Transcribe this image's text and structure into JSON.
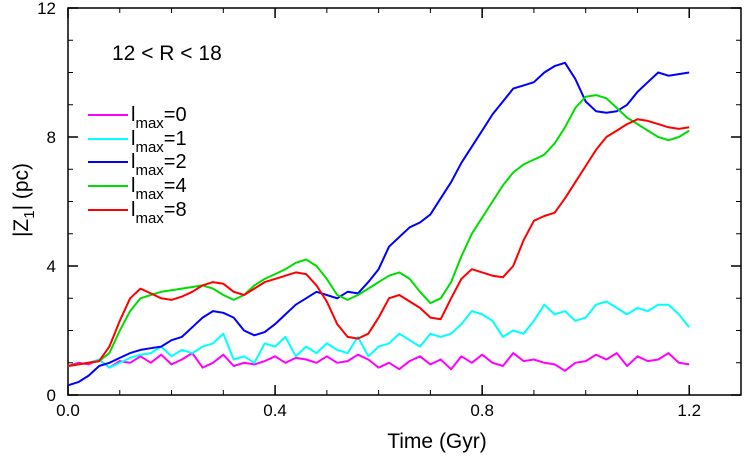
{
  "chart_data": {
    "type": "line",
    "xlabel": "Time (Gyr)",
    "ylabel_parts": {
      "pre": "|Z",
      "sub": "1",
      "post": "| (pc)"
    },
    "annotation": "12 < R < 18",
    "xlim": [
      0.0,
      1.3
    ],
    "ylim": [
      0,
      12
    ],
    "xticks": [
      0.0,
      0.4,
      0.8,
      1.2
    ],
    "xtick_labels": [
      "0.0",
      "0.4",
      "0.8",
      "1.2"
    ],
    "yticks": [
      0,
      4,
      8,
      12
    ],
    "ytick_labels": [
      "0",
      "4",
      "8",
      "12"
    ],
    "legend_placement": "upper-left",
    "legend_symbol": "l",
    "legend_sub": "max",
    "series": [
      {
        "name": "=0",
        "color": "#ff00ff",
        "x": [
          0.0,
          0.02,
          0.04,
          0.06,
          0.08,
          0.1,
          0.12,
          0.14,
          0.16,
          0.18,
          0.2,
          0.22,
          0.24,
          0.26,
          0.28,
          0.3,
          0.32,
          0.34,
          0.36,
          0.38,
          0.4,
          0.42,
          0.44,
          0.46,
          0.48,
          0.5,
          0.52,
          0.54,
          0.56,
          0.58,
          0.6,
          0.62,
          0.64,
          0.66,
          0.68,
          0.7,
          0.72,
          0.74,
          0.76,
          0.78,
          0.8,
          0.82,
          0.84,
          0.86,
          0.88,
          0.9,
          0.92,
          0.94,
          0.96,
          0.98,
          1.0,
          1.02,
          1.04,
          1.06,
          1.08,
          1.1,
          1.12,
          1.14,
          1.16,
          1.18,
          1.2
        ],
        "y": [
          0.9,
          1.0,
          0.95,
          1.1,
          0.85,
          1.05,
          1.0,
          1.2,
          1.0,
          1.25,
          0.95,
          1.1,
          1.3,
          0.85,
          1.0,
          1.25,
          0.9,
          1.0,
          0.95,
          1.05,
          1.2,
          1.0,
          1.15,
          1.1,
          1.0,
          1.2,
          1.0,
          1.05,
          1.25,
          1.1,
          0.85,
          1.0,
          0.8,
          1.05,
          1.2,
          0.95,
          1.1,
          0.8,
          1.2,
          1.0,
          1.25,
          1.0,
          0.9,
          1.3,
          1.05,
          1.1,
          1.0,
          0.95,
          0.75,
          1.0,
          1.05,
          1.25,
          1.1,
          1.3,
          0.9,
          1.2,
          1.05,
          1.1,
          1.3,
          1.0,
          0.95
        ]
      },
      {
        "name": "=1",
        "color": "#00ffff",
        "x": [
          0.0,
          0.02,
          0.04,
          0.06,
          0.08,
          0.1,
          0.12,
          0.14,
          0.16,
          0.18,
          0.2,
          0.22,
          0.24,
          0.26,
          0.28,
          0.3,
          0.32,
          0.34,
          0.36,
          0.38,
          0.4,
          0.42,
          0.44,
          0.46,
          0.48,
          0.5,
          0.52,
          0.54,
          0.56,
          0.58,
          0.6,
          0.62,
          0.64,
          0.66,
          0.68,
          0.7,
          0.72,
          0.74,
          0.76,
          0.78,
          0.8,
          0.82,
          0.84,
          0.86,
          0.88,
          0.9,
          0.92,
          0.94,
          0.96,
          0.98,
          1.0,
          1.02,
          1.04,
          1.06,
          1.08,
          1.1,
          1.12,
          1.14,
          1.16,
          1.18,
          1.2
        ],
        "y": [
          0.9,
          0.95,
          1.0,
          1.1,
          0.85,
          1.0,
          1.15,
          1.25,
          1.3,
          1.5,
          1.2,
          1.4,
          1.3,
          1.5,
          1.6,
          1.9,
          1.1,
          1.2,
          1.0,
          1.6,
          1.5,
          1.8,
          1.2,
          1.5,
          1.3,
          1.6,
          1.4,
          1.3,
          1.8,
          1.2,
          1.5,
          1.6,
          1.9,
          1.7,
          1.5,
          1.9,
          1.8,
          1.9,
          2.2,
          2.6,
          2.5,
          2.3,
          1.8,
          2.0,
          1.9,
          2.3,
          2.8,
          2.5,
          2.6,
          2.3,
          2.4,
          2.8,
          2.9,
          2.7,
          2.5,
          2.7,
          2.6,
          2.8,
          2.8,
          2.5,
          2.1
        ]
      },
      {
        "name": "=2",
        "color": "#0000ff",
        "x": [
          0.0,
          0.02,
          0.04,
          0.06,
          0.08,
          0.1,
          0.12,
          0.14,
          0.16,
          0.18,
          0.2,
          0.22,
          0.24,
          0.26,
          0.28,
          0.3,
          0.32,
          0.34,
          0.36,
          0.38,
          0.4,
          0.42,
          0.44,
          0.46,
          0.48,
          0.5,
          0.52,
          0.54,
          0.56,
          0.58,
          0.6,
          0.62,
          0.64,
          0.66,
          0.68,
          0.7,
          0.72,
          0.74,
          0.76,
          0.78,
          0.8,
          0.82,
          0.84,
          0.86,
          0.88,
          0.9,
          0.92,
          0.94,
          0.96,
          0.98,
          1.0,
          1.02,
          1.04,
          1.06,
          1.08,
          1.1,
          1.12,
          1.14,
          1.16,
          1.18,
          1.2
        ],
        "y": [
          0.3,
          0.4,
          0.6,
          0.9,
          1.0,
          1.15,
          1.3,
          1.4,
          1.45,
          1.5,
          1.7,
          1.8,
          2.1,
          2.4,
          2.6,
          2.55,
          2.4,
          2.0,
          1.85,
          1.95,
          2.2,
          2.5,
          2.8,
          3.0,
          3.2,
          3.1,
          3.0,
          3.2,
          3.15,
          3.5,
          3.9,
          4.6,
          4.9,
          5.2,
          5.35,
          5.6,
          6.1,
          6.6,
          7.2,
          7.7,
          8.2,
          8.7,
          9.1,
          9.5,
          9.6,
          9.7,
          10.0,
          10.2,
          10.3,
          9.8,
          9.1,
          8.8,
          8.75,
          8.8,
          9.0,
          9.4,
          9.7,
          10.0,
          9.9,
          9.95,
          10.0
        ]
      },
      {
        "name": "=4",
        "color": "#00dd00",
        "x": [
          0.0,
          0.02,
          0.04,
          0.06,
          0.08,
          0.1,
          0.12,
          0.14,
          0.16,
          0.18,
          0.2,
          0.22,
          0.24,
          0.26,
          0.28,
          0.3,
          0.32,
          0.34,
          0.36,
          0.38,
          0.4,
          0.42,
          0.44,
          0.46,
          0.48,
          0.5,
          0.52,
          0.54,
          0.56,
          0.58,
          0.6,
          0.62,
          0.64,
          0.66,
          0.68,
          0.7,
          0.72,
          0.74,
          0.76,
          0.78,
          0.8,
          0.82,
          0.84,
          0.86,
          0.88,
          0.9,
          0.92,
          0.94,
          0.96,
          0.98,
          1.0,
          1.02,
          1.04,
          1.06,
          1.08,
          1.1,
          1.12,
          1.14,
          1.16,
          1.18,
          1.2
        ],
        "y": [
          0.9,
          0.95,
          1.0,
          1.05,
          1.3,
          2.0,
          2.6,
          3.0,
          3.1,
          3.2,
          3.25,
          3.3,
          3.35,
          3.4,
          3.3,
          3.1,
          2.95,
          3.1,
          3.4,
          3.6,
          3.75,
          3.9,
          4.1,
          4.2,
          4.0,
          3.6,
          3.1,
          2.95,
          3.1,
          3.3,
          3.5,
          3.7,
          3.8,
          3.6,
          3.2,
          2.85,
          3.0,
          3.5,
          4.3,
          5.0,
          5.5,
          6.0,
          6.5,
          6.9,
          7.15,
          7.3,
          7.45,
          7.8,
          8.3,
          8.9,
          9.25,
          9.3,
          9.2,
          8.9,
          8.6,
          8.4,
          8.2,
          8.0,
          7.9,
          8.0,
          8.2
        ]
      },
      {
        "name": "=8",
        "color": "#ff0000",
        "x": [
          0.0,
          0.02,
          0.04,
          0.06,
          0.08,
          0.1,
          0.12,
          0.14,
          0.16,
          0.18,
          0.2,
          0.22,
          0.24,
          0.26,
          0.28,
          0.3,
          0.32,
          0.34,
          0.36,
          0.38,
          0.4,
          0.42,
          0.44,
          0.46,
          0.48,
          0.5,
          0.52,
          0.54,
          0.56,
          0.58,
          0.6,
          0.62,
          0.64,
          0.66,
          0.68,
          0.7,
          0.72,
          0.74,
          0.76,
          0.78,
          0.8,
          0.82,
          0.84,
          0.86,
          0.88,
          0.9,
          0.92,
          0.94,
          0.96,
          0.98,
          1.0,
          1.02,
          1.04,
          1.06,
          1.08,
          1.1,
          1.12,
          1.14,
          1.16,
          1.18,
          1.2
        ],
        "y": [
          0.9,
          0.95,
          1.0,
          1.05,
          1.5,
          2.3,
          3.0,
          3.3,
          3.15,
          3.0,
          2.95,
          3.05,
          3.2,
          3.4,
          3.5,
          3.45,
          3.2,
          3.1,
          3.3,
          3.5,
          3.6,
          3.7,
          3.8,
          3.75,
          3.4,
          2.9,
          2.2,
          1.8,
          1.75,
          1.9,
          2.4,
          3.0,
          3.1,
          2.9,
          2.7,
          2.4,
          2.35,
          3.0,
          3.6,
          3.9,
          3.8,
          3.7,
          3.65,
          4.0,
          4.8,
          5.4,
          5.55,
          5.65,
          6.1,
          6.6,
          7.1,
          7.6,
          8.0,
          8.2,
          8.4,
          8.55,
          8.5,
          8.4,
          8.3,
          8.25,
          8.3
        ]
      }
    ]
  }
}
